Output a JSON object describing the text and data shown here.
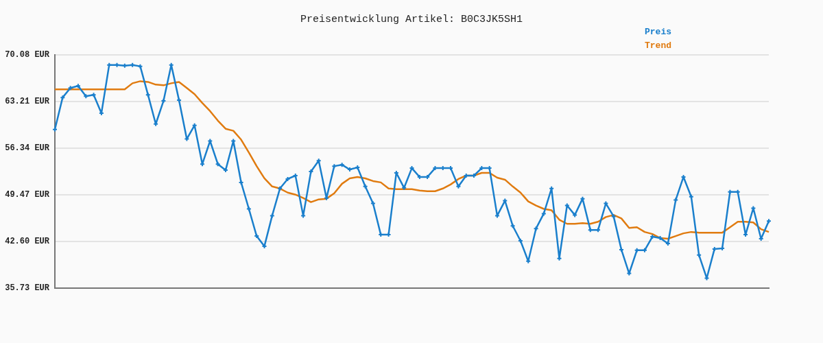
{
  "chart_data": {
    "type": "line",
    "title": "Preisentwicklung Artikel: B0C3JK5SH1",
    "categories": [
      null,
      null,
      null,
      null,
      null,
      null,
      null,
      null,
      null,
      null,
      null,
      null,
      null,
      null,
      null,
      null,
      null,
      null,
      null,
      null,
      null,
      null,
      null,
      null,
      null,
      null,
      null,
      null,
      null,
      null,
      null,
      null,
      null,
      null,
      null,
      null,
      null,
      null,
      null,
      null,
      null,
      null,
      null,
      null,
      null,
      null,
      null,
      null,
      null,
      null,
      null,
      null,
      null,
      null,
      null,
      null,
      null,
      null,
      null,
      null,
      null,
      null,
      null,
      null,
      null,
      null,
      null,
      null,
      null,
      null,
      null,
      null,
      null,
      null,
      null,
      null,
      null,
      null,
      null,
      null,
      null,
      null,
      null,
      null,
      null,
      null,
      null,
      null,
      null,
      null,
      null,
      null,
      null
    ],
    "series": [
      {
        "name": "Preis",
        "color": "#1a7fcc",
        "marker": "cross",
        "values": [
          59.1,
          63.8,
          65.2,
          65.5,
          64.0,
          64.2,
          61.5,
          68.6,
          68.6,
          68.5,
          68.6,
          68.4,
          64.2,
          59.9,
          63.3,
          68.6,
          63.4,
          57.7,
          59.7,
          54.0,
          57.4,
          54.0,
          53.1,
          57.4,
          51.3,
          47.4,
          43.4,
          41.9,
          46.4,
          50.4,
          51.8,
          52.3,
          46.4,
          52.9,
          54.5,
          49.0,
          53.7,
          53.9,
          53.2,
          53.5,
          50.7,
          48.2,
          43.6,
          43.6,
          52.7,
          50.5,
          53.4,
          52.1,
          52.1,
          53.4,
          53.4,
          53.4,
          50.7,
          52.3,
          52.3,
          53.4,
          53.4,
          46.4,
          48.6,
          44.9,
          42.7,
          39.7,
          44.5,
          46.7,
          50.4,
          40.1,
          47.9,
          46.5,
          48.9,
          44.3,
          44.3,
          48.2,
          46.3,
          41.4,
          37.9,
          41.3,
          41.3,
          43.3,
          43.1,
          42.3,
          48.7,
          52.1,
          49.2,
          40.6,
          37.2,
          41.5,
          41.6,
          49.9,
          49.9,
          43.6,
          47.5,
          43.0,
          45.6
        ]
      },
      {
        "name": "Trend",
        "color": "#e07b10",
        "marker": "none",
        "values": [
          65.0,
          65.0,
          65.0,
          65.0,
          65.0,
          65.0,
          65.0,
          65.0,
          65.0,
          65.0,
          65.9,
          66.2,
          66.1,
          65.7,
          65.6,
          65.9,
          66.1,
          65.2,
          64.3,
          63.0,
          61.8,
          60.4,
          59.2,
          58.9,
          57.6,
          55.7,
          53.7,
          51.9,
          50.7,
          50.4,
          49.8,
          49.5,
          49.0,
          48.4,
          48.8,
          48.9,
          49.7,
          51.1,
          51.9,
          52.1,
          51.9,
          51.5,
          51.3,
          50.4,
          50.3,
          50.3,
          50.3,
          50.1,
          50.0,
          50.0,
          50.4,
          51.0,
          51.8,
          52.3,
          52.3,
          52.7,
          52.7,
          52.0,
          51.7,
          50.7,
          49.8,
          48.5,
          47.9,
          47.4,
          47.2,
          45.8,
          45.2,
          45.2,
          45.3,
          45.2,
          45.5,
          46.2,
          46.5,
          46.0,
          44.6,
          44.7,
          44.0,
          43.7,
          43.1,
          43.0,
          43.4,
          43.8,
          44.0,
          43.9,
          43.9,
          43.9,
          43.9,
          44.7,
          45.5,
          45.5,
          45.4,
          44.4,
          44.0
        ]
      }
    ],
    "ylim": [
      35.73,
      70.08
    ],
    "yticks": [
      {
        "value": 35.73,
        "label": "35.73 EUR"
      },
      {
        "value": 42.6,
        "label": "42.60 EUR"
      },
      {
        "value": 49.47,
        "label": "49.47 EUR"
      },
      {
        "value": 56.34,
        "label": "56.34 EUR"
      },
      {
        "value": 63.21,
        "label": "63.21 EUR"
      },
      {
        "value": 70.08,
        "label": "70.08 EUR"
      }
    ],
    "grid": "y",
    "legend": "top right",
    "tick_labels": "y",
    "line_style": "solid"
  }
}
